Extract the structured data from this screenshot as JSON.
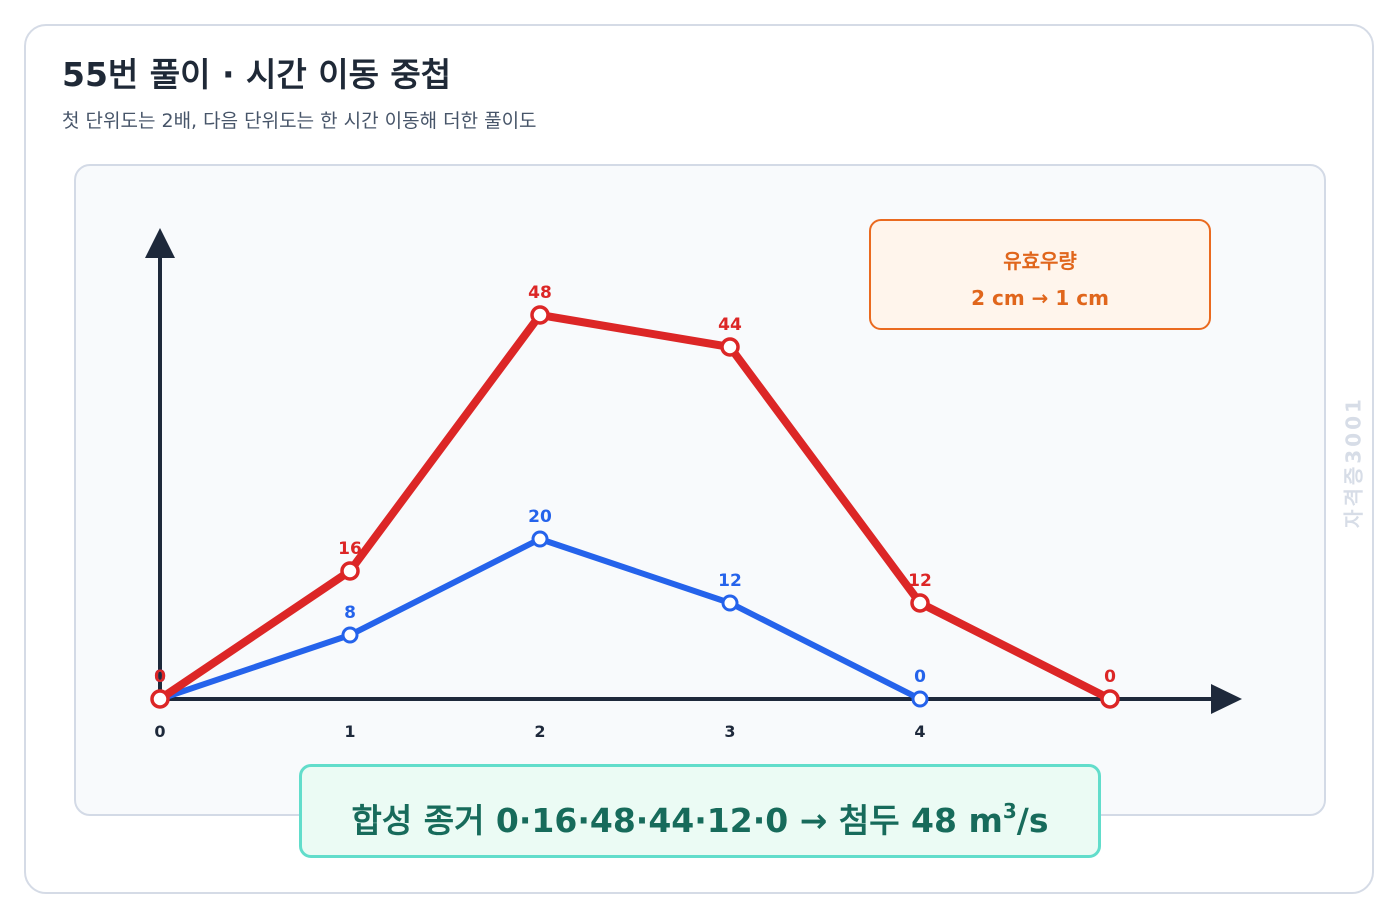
{
  "header": {
    "title": "55번 풀이 · 시간 이동 중첩",
    "subtitle": "첫 단위도는 2배, 다음 단위도는 한 시간 이동해 더한 풀이도"
  },
  "watermark": "자격증3001",
  "rainfall_box": {
    "title": "유효우량",
    "value": "2 cm → 1 cm"
  },
  "result_box": {
    "prefix": "합성 종거 0·16·48·44·12·0 → 첨두 48 m",
    "superscript": "3",
    "suffix": "/s"
  },
  "colors": {
    "red_series": "#dc2626",
    "blue_series": "#2563eb",
    "axis": "#1e293b",
    "rain_accent": "#ea6a1f",
    "result_accent": "#176b5b"
  },
  "chart_data": {
    "type": "line",
    "x_tick_labels": [
      "0",
      "1",
      "2",
      "3",
      "4"
    ],
    "x_range": [
      0,
      5
    ],
    "y_range": [
      0,
      48
    ],
    "grid": false,
    "legend": "none",
    "series": [
      {
        "color": "#2563eb",
        "x": [
          0,
          1,
          2,
          3,
          4
        ],
        "values": [
          0,
          8,
          20,
          12,
          0
        ]
      },
      {
        "color": "#dc2626",
        "x": [
          0,
          1,
          2,
          3,
          4,
          5
        ],
        "values": [
          0,
          16,
          48,
          44,
          12,
          0
        ]
      }
    ]
  }
}
